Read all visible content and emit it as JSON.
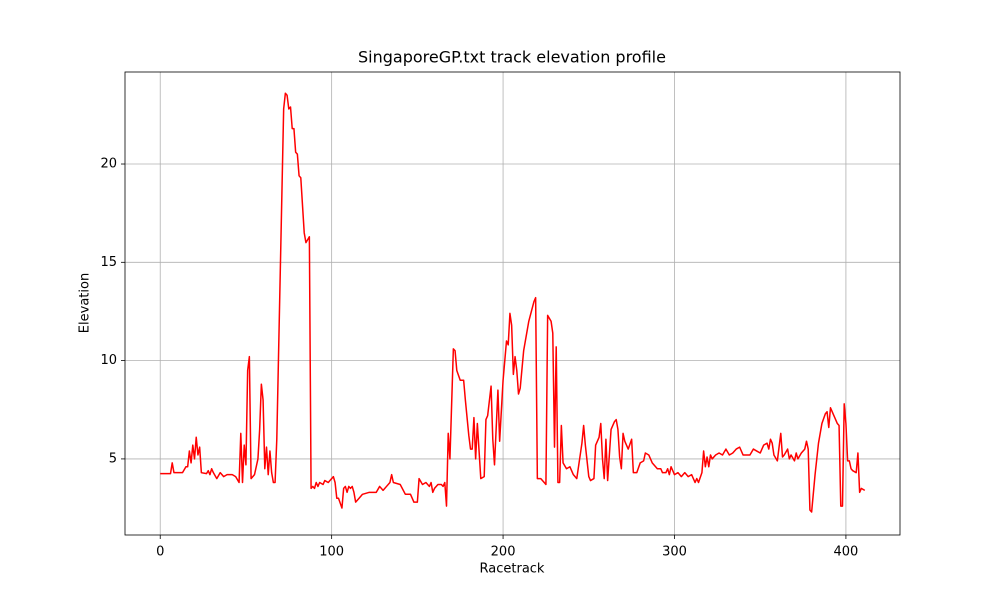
{
  "chart_data": {
    "type": "line",
    "title": "SingaporeGP.txt track elevation profile",
    "x_label": "Racetrack",
    "y_label": "Elevation",
    "x": [
      0,
      6,
      7,
      8,
      13,
      15,
      16,
      17,
      18,
      19,
      20,
      21,
      22,
      23,
      24,
      27,
      28,
      29,
      30,
      31,
      33,
      35,
      37,
      39,
      42,
      44,
      46,
      47,
      48,
      49,
      50,
      51,
      52,
      53,
      55,
      57,
      58,
      59,
      60,
      61,
      62,
      63,
      64,
      65,
      66,
      67,
      68,
      72,
      73,
      74,
      75,
      76,
      77,
      78,
      79,
      80,
      81,
      82,
      84,
      85,
      87,
      88,
      89,
      90,
      91,
      92,
      93,
      95,
      96,
      98,
      100,
      101,
      102,
      103,
      104,
      106,
      107,
      108,
      109,
      110,
      111,
      112,
      113,
      114,
      116,
      118,
      122,
      126,
      128,
      130,
      132,
      134,
      135,
      136,
      140,
      143,
      146,
      148,
      150,
      151,
      153,
      155,
      157,
      158,
      159,
      160,
      162,
      164,
      165,
      166,
      167,
      168,
      169,
      171,
      172,
      173,
      175,
      177,
      178,
      180,
      181,
      182,
      183,
      184,
      185,
      187,
      189,
      190,
      191,
      193,
      194,
      195,
      197,
      198,
      200,
      202,
      203,
      204,
      205,
      206,
      207,
      208,
      209,
      210,
      212,
      215,
      218,
      219,
      220,
      222,
      224,
      225,
      226,
      228,
      229,
      230,
      231,
      232,
      233,
      234,
      235,
      237,
      239,
      241,
      243,
      246,
      247,
      248,
      250,
      251,
      253,
      254,
      256,
      257,
      258,
      259,
      260,
      261,
      263,
      265,
      266,
      267,
      268,
      269,
      270,
      271,
      273,
      275,
      276,
      278,
      280,
      282,
      283,
      285,
      287,
      290,
      292,
      293,
      295,
      296,
      297,
      298,
      299,
      300,
      302,
      304,
      306,
      308,
      310,
      312,
      313,
      314,
      316,
      317,
      318,
      319,
      320,
      321,
      322,
      324,
      326,
      328,
      330,
      332,
      334,
      336,
      338,
      340,
      344,
      346,
      348,
      350,
      352,
      354,
      355,
      356,
      357,
      358,
      360,
      361,
      362,
      363,
      364,
      366,
      367,
      368,
      370,
      371,
      372,
      374,
      376,
      377,
      378,
      379,
      380,
      382,
      384,
      386,
      388,
      389,
      390,
      391,
      393,
      395,
      396,
      397,
      398,
      399,
      400,
      401,
      402,
      403,
      404,
      406,
      407,
      408,
      409,
      411
    ],
    "series": [
      {
        "name": "Elevation",
        "color": "#ff0000",
        "values": [
          4.25,
          4.25,
          4.8,
          4.3,
          4.3,
          4.6,
          4.6,
          5.4,
          4.8,
          5.7,
          5.0,
          6.1,
          5.2,
          5.6,
          4.3,
          4.25,
          4.4,
          4.2,
          4.5,
          4.3,
          4.0,
          4.3,
          4.1,
          4.2,
          4.2,
          4.1,
          3.8,
          6.3,
          3.8,
          5.7,
          4.7,
          9.5,
          10.2,
          4.0,
          4.2,
          5.0,
          6.5,
          8.8,
          8.0,
          4.5,
          5.6,
          4.2,
          5.4,
          4.3,
          3.8,
          3.8,
          6.0,
          22.8,
          23.6,
          23.5,
          22.8,
          22.9,
          21.8,
          21.8,
          20.6,
          20.5,
          19.4,
          19.3,
          16.5,
          16.0,
          16.3,
          3.5,
          3.6,
          3.5,
          3.8,
          3.6,
          3.8,
          3.7,
          3.9,
          3.8,
          4.0,
          4.1,
          3.8,
          3.0,
          3.0,
          2.5,
          3.5,
          3.6,
          3.3,
          3.6,
          3.5,
          3.6,
          3.3,
          2.8,
          3.0,
          3.2,
          3.3,
          3.3,
          3.6,
          3.4,
          3.6,
          3.8,
          4.2,
          3.8,
          3.7,
          3.2,
          3.2,
          2.8,
          2.8,
          4.0,
          3.7,
          3.8,
          3.6,
          3.8,
          3.3,
          3.5,
          3.7,
          3.7,
          3.6,
          3.8,
          2.6,
          6.3,
          5.0,
          10.6,
          10.5,
          9.5,
          9.0,
          9.0,
          8.0,
          6.2,
          5.5,
          5.5,
          7.1,
          5.0,
          6.8,
          4.0,
          4.1,
          7.0,
          7.2,
          8.7,
          6.0,
          4.7,
          8.5,
          5.9,
          9.0,
          11.0,
          10.8,
          12.4,
          11.8,
          9.3,
          10.2,
          9.5,
          8.3,
          8.6,
          10.5,
          12.0,
          13.0,
          13.2,
          4.0,
          4.0,
          3.8,
          3.7,
          12.3,
          12.0,
          11.4,
          5.6,
          10.7,
          3.8,
          3.8,
          6.7,
          4.8,
          4.5,
          4.6,
          4.2,
          4.0,
          5.8,
          6.7,
          5.7,
          4.1,
          3.9,
          4.0,
          5.7,
          6.1,
          6.8,
          5.0,
          4.0,
          6.0,
          3.9,
          6.5,
          6.9,
          7.0,
          6.5,
          5.1,
          4.5,
          6.3,
          5.9,
          5.5,
          6.0,
          4.3,
          4.3,
          4.8,
          4.9,
          5.3,
          5.2,
          4.8,
          4.5,
          4.5,
          4.3,
          4.3,
          4.5,
          4.2,
          4.6,
          4.4,
          4.2,
          4.3,
          4.1,
          4.3,
          4.1,
          4.2,
          3.8,
          4.0,
          3.8,
          4.3,
          5.4,
          4.6,
          5.1,
          4.6,
          5.2,
          5.0,
          5.2,
          5.3,
          5.2,
          5.5,
          5.2,
          5.3,
          5.5,
          5.6,
          5.2,
          5.2,
          5.5,
          5.4,
          5.3,
          5.7,
          5.8,
          5.5,
          6.0,
          5.8,
          5.2,
          4.9,
          5.6,
          6.3,
          5.1,
          5.2,
          5.5,
          5.0,
          5.2,
          4.9,
          5.3,
          5.0,
          5.3,
          5.5,
          5.9,
          5.5,
          2.4,
          2.3,
          4.2,
          5.8,
          6.8,
          7.3,
          7.4,
          6.6,
          7.6,
          7.2,
          6.8,
          6.7,
          2.6,
          2.6,
          7.8,
          6.8,
          4.9,
          4.9,
          4.5,
          4.4,
          4.3,
          5.3,
          3.3,
          3.5,
          3.4
        ]
      }
    ],
    "xlim": [
      -20.55,
      431.55
    ],
    "ylim": [
      1.13,
      24.68
    ],
    "xticks": [
      0,
      100,
      200,
      300,
      400
    ],
    "yticks": [
      5,
      10,
      15,
      20
    ],
    "grid": true
  }
}
